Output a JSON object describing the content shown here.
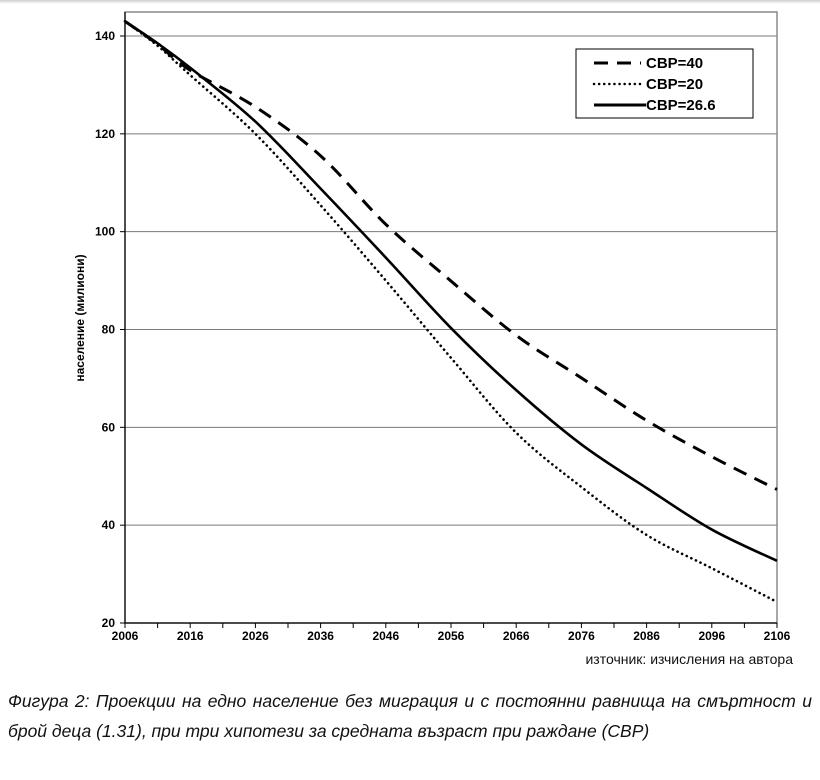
{
  "chart_data": {
    "type": "line",
    "title": "",
    "xlabel": "",
    "ylabel": "население (милиони)",
    "xlim": [
      2006,
      2106
    ],
    "ylim": [
      20,
      145
    ],
    "x_ticks": [
      "2006",
      "2016",
      "2026",
      "2036",
      "2046",
      "2056",
      "2066",
      "2076",
      "2086",
      "2096",
      "2106"
    ],
    "y_ticks": [
      "20",
      "40",
      "60",
      "80",
      "100",
      "120",
      "140"
    ],
    "grid": "horizontal",
    "legend_position": "top-right",
    "x": [
      2006,
      2011,
      2016,
      2026,
      2036,
      2046,
      2056,
      2066,
      2076,
      2086,
      2096,
      2106
    ],
    "series": [
      {
        "name": "СВР=40",
        "style": "dashed",
        "values": [
          143,
          138.3,
          133,
          125.5,
          115.5,
          101.5,
          89.9,
          78.8,
          70.1,
          61.4,
          54.0,
          47.3
        ]
      },
      {
        "name": "СВР=20",
        "style": "dotted",
        "values": [
          143,
          138.0,
          132,
          120,
          105.4,
          90,
          74.2,
          58.9,
          47.8,
          38,
          31.2,
          24.3
        ]
      },
      {
        "name": "СВР=26.6",
        "style": "solid",
        "values": [
          143,
          138.5,
          133.5,
          122.5,
          108.8,
          94.7,
          80.3,
          67.6,
          56.5,
          47.6,
          39.1,
          32.7
        ]
      }
    ]
  },
  "source": "източник: изчисления на автора",
  "caption": "Фигура 2: Проекции на едно население без миграция и с постоянни равнища на смъртност и брой деца (1.31), при три хипотези за средната възраст при раждане (СВР)"
}
